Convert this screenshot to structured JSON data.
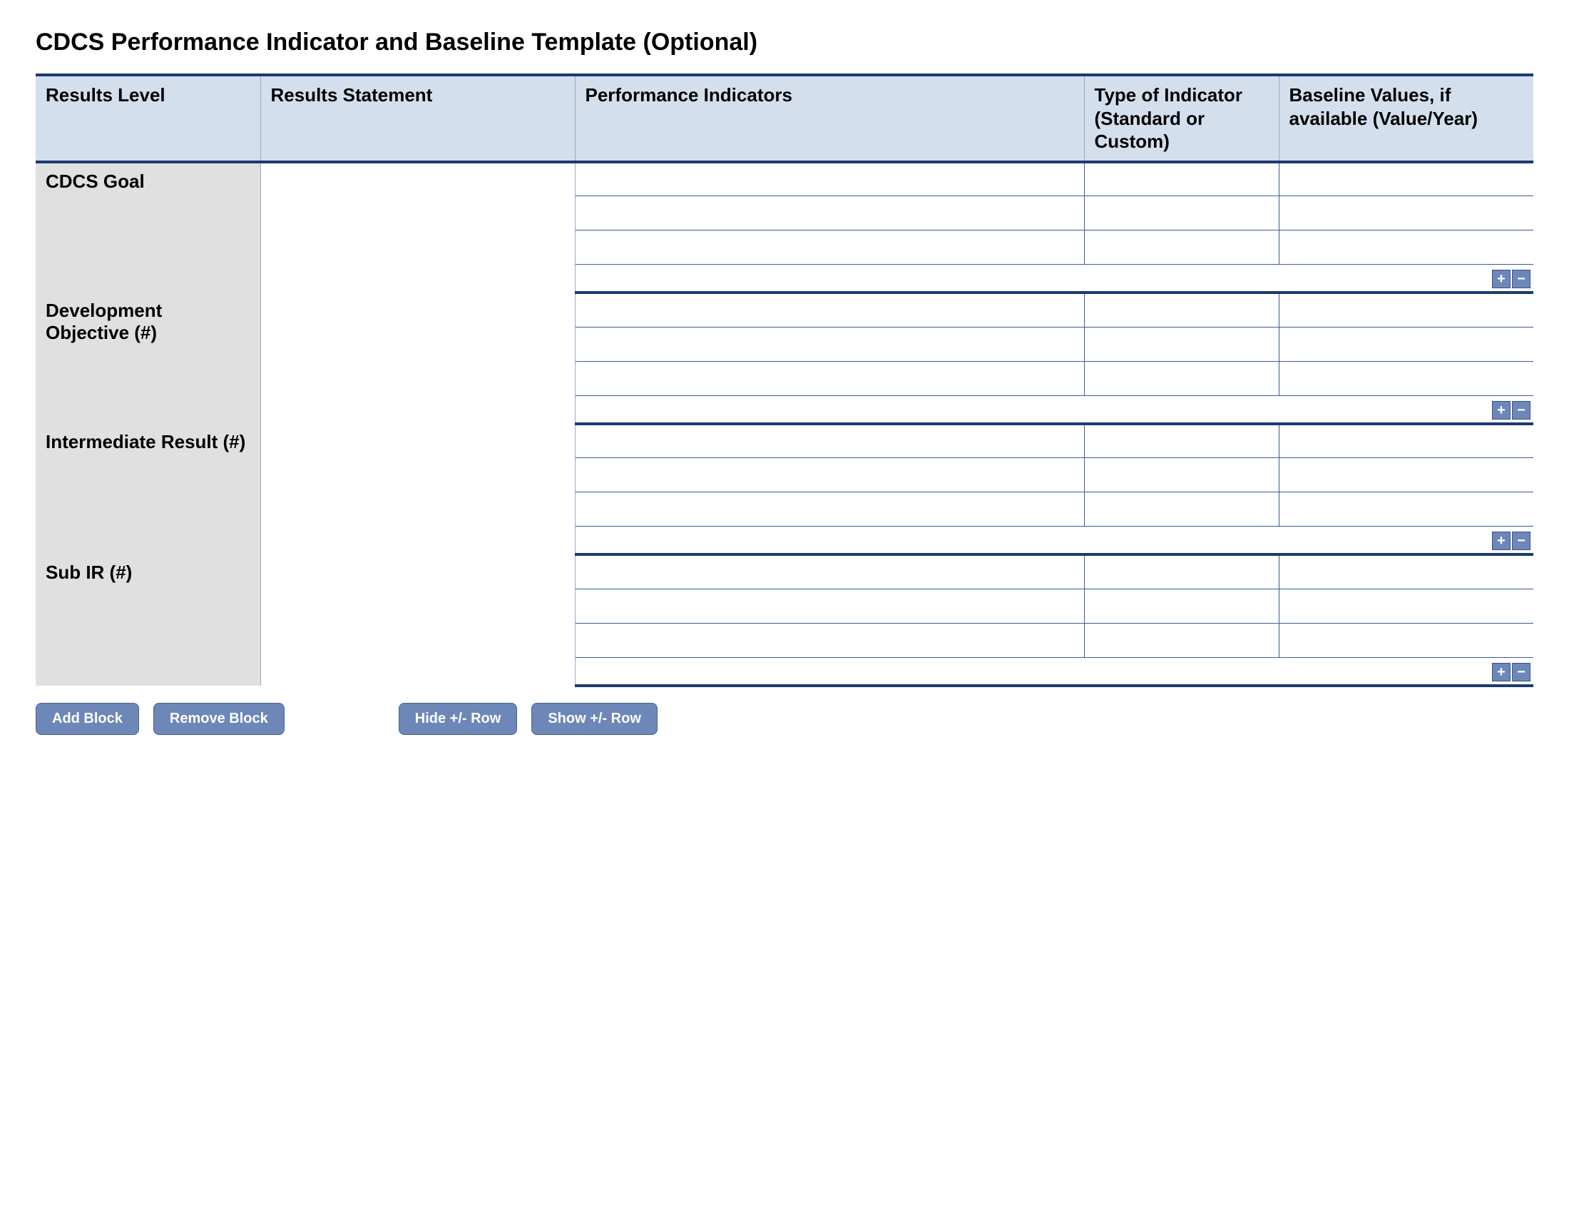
{
  "title": "CDCS Performance Indicator and Baseline Template (Optional)",
  "columns": {
    "c1": "Results Level",
    "c2": "Results Statement",
    "c3": "Performance Indicators",
    "c4": "Type of Indicator (Standard or Custom)",
    "c5": "Baseline Values, if available (Value/Year)"
  },
  "col_widths_pct": {
    "c1": 15,
    "c2": 21,
    "c3": 34,
    "c4": 13,
    "c5": 17
  },
  "sections": [
    {
      "level_label": "CDCS Goal",
      "data_rows": 3
    },
    {
      "level_label": "Development Objective (#)",
      "data_rows": 3
    },
    {
      "level_label": "Intermediate Result (#)",
      "data_rows": 3
    },
    {
      "level_label": "Sub IR (#)",
      "data_rows": 3
    }
  ],
  "controls": {
    "plus": "+",
    "minus": "−"
  },
  "buttons": {
    "add_block": "Add Block",
    "remove_block": "Remove Block",
    "hide_row": "Hide +/- Row",
    "show_row": "Show +/- Row"
  },
  "colors": {
    "header_bg": "#d4dfee",
    "border_dark": "#1c3a70",
    "border_cell": "#3b5998",
    "level_bg": "#e0e0e0",
    "btn_bg": "#6d87b8"
  }
}
